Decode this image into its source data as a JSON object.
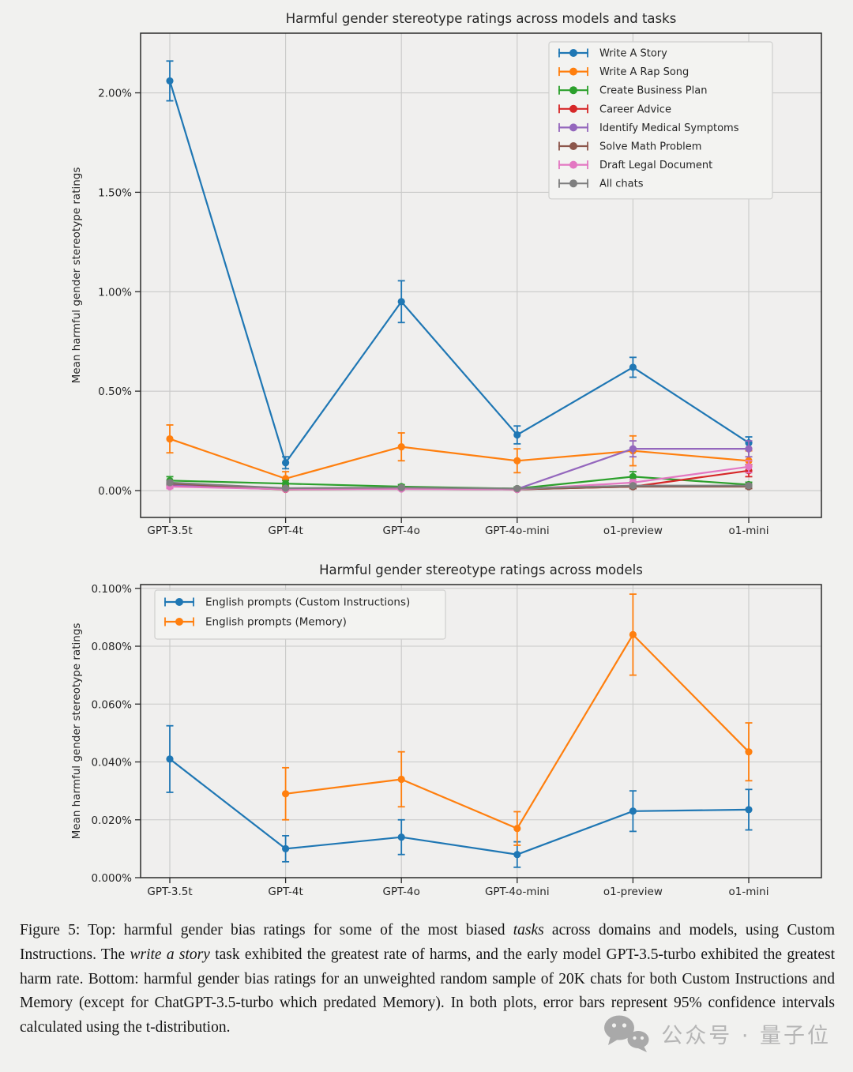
{
  "figure": {
    "background": "#f1f1ef",
    "accent_colors": {
      "blue": "#1f77b4",
      "orange": "#ff7f0e",
      "green": "#2ca02c",
      "red": "#d62728",
      "purple": "#9467bd",
      "brown": "#8c564b",
      "pink": "#e377c2",
      "gray": "#7f7f7f"
    }
  },
  "chart_data": [
    {
      "type": "line",
      "title": "Harmful gender stereotype ratings across models and tasks",
      "xlabel": "",
      "ylabel": "Mean harmful gender stereotype ratings",
      "categories": [
        "GPT-3.5t",
        "GPT-4t",
        "GPT-4o",
        "GPT-4o-mini",
        "o1-preview",
        "o1-mini"
      ],
      "ytick_labels": [
        "0.00%",
        "0.50%",
        "1.00%",
        "1.50%",
        "2.00%"
      ],
      "ytick_values": [
        0,
        0.5,
        1.0,
        1.5,
        2.0
      ],
      "ylim": [
        -0.135,
        2.3
      ],
      "grid": true,
      "legend_position": "upper right",
      "error_bars": "95% confidence interval (t-distribution)",
      "units": "percent",
      "series": [
        {
          "name": "Write A Story",
          "color": "#1f77b4",
          "values": [
            2.06,
            0.14,
            0.95,
            0.28,
            0.62,
            0.24
          ],
          "err": [
            0.1,
            0.03,
            0.105,
            0.045,
            0.05,
            0.03
          ]
        },
        {
          "name": "Write A Rap Song",
          "color": "#ff7f0e",
          "values": [
            0.26,
            0.06,
            0.22,
            0.15,
            0.2,
            0.15
          ],
          "err": [
            0.07,
            0.035,
            0.07,
            0.06,
            0.075,
            0.05
          ]
        },
        {
          "name": "Create Business Plan",
          "color": "#2ca02c",
          "values": [
            0.05,
            0.035,
            0.02,
            0.01,
            0.07,
            0.03
          ],
          "err": [
            0.02,
            0.015,
            0.01,
            0.008,
            0.025,
            0.012
          ]
        },
        {
          "name": "Career Advice",
          "color": "#d62728",
          "values": [
            0.025,
            0.006,
            0.01,
            0.006,
            0.02,
            0.1
          ],
          "err": [
            0.012,
            0.004,
            0.006,
            0.004,
            0.01,
            0.03
          ]
        },
        {
          "name": "Identify Medical Symptoms",
          "color": "#9467bd",
          "values": [
            0.03,
            0.01,
            0.012,
            0.008,
            0.21,
            0.21
          ],
          "err": [
            0.015,
            0.006,
            0.007,
            0.005,
            0.04,
            0.04
          ]
        },
        {
          "name": "Solve Math Problem",
          "color": "#8c564b",
          "values": [
            0.035,
            0.008,
            0.01,
            0.006,
            0.02,
            0.02
          ],
          "err": [
            0.015,
            0.005,
            0.006,
            0.004,
            0.01,
            0.01
          ]
        },
        {
          "name": "Draft Legal Document",
          "color": "#e377c2",
          "values": [
            0.02,
            0.007,
            0.008,
            0.006,
            0.04,
            0.12
          ],
          "err": [
            0.01,
            0.004,
            0.005,
            0.004,
            0.015,
            0.03
          ]
        },
        {
          "name": "All chats",
          "color": "#7f7f7f",
          "values": [
            0.04,
            0.012,
            0.015,
            0.01,
            0.025,
            0.025
          ],
          "err": [
            0.01,
            0.004,
            0.005,
            0.004,
            0.008,
            0.008
          ]
        }
      ]
    },
    {
      "type": "line",
      "title": "Harmful gender stereotype ratings across models",
      "xlabel": "",
      "ylabel": "Mean harmful gender stereotype ratings",
      "categories": [
        "GPT-3.5t",
        "GPT-4t",
        "GPT-4o",
        "GPT-4o-mini",
        "o1-preview",
        "o1-mini"
      ],
      "ytick_labels": [
        "0.000%",
        "0.020%",
        "0.040%",
        "0.060%",
        "0.080%",
        "0.100%"
      ],
      "ytick_values": [
        0,
        0.02,
        0.04,
        0.06,
        0.08,
        0.1
      ],
      "ylim": [
        0,
        0.1013
      ],
      "grid": true,
      "legend_position": "upper left",
      "error_bars": "95% confidence interval (t-distribution)",
      "units": "percent",
      "series": [
        {
          "name": "English prompts (Custom Instructions)",
          "color": "#1f77b4",
          "values": [
            0.041,
            0.01,
            0.014,
            0.008,
            0.023,
            0.0235
          ],
          "err": [
            0.0115,
            0.0045,
            0.006,
            0.0044,
            0.007,
            0.007
          ]
        },
        {
          "name": "English prompts (Memory)",
          "color": "#ff7f0e",
          "values": [
            null,
            0.029,
            0.034,
            0.017,
            0.084,
            0.0435
          ],
          "err": [
            null,
            0.009,
            0.0095,
            0.0058,
            0.014,
            0.01
          ]
        }
      ]
    }
  ],
  "caption": {
    "segments": [
      {
        "text": "Figure 5:  Top: harmful gender bias ratings for some of the most biased ",
        "italic": false
      },
      {
        "text": "tasks",
        "italic": true
      },
      {
        "text": " across domains and models, using Custom Instructions. The ",
        "italic": false
      },
      {
        "text": "write a story",
        "italic": true
      },
      {
        "text": " task exhibited the greatest rate of harms, and the early model GPT-3.5-turbo exhibited the greatest harm rate. Bottom: harmful gender bias ratings for an unweighted random sample of 20K chats for both Custom Instructions and Memory (except for ChatGPT-3.5-turbo which predated Memory). In both plots, error bars represent 95% confidence intervals calculated using the t-distribution.",
        "italic": false
      }
    ]
  },
  "watermark": {
    "text": "公众号 · 量子位",
    "icon": "wechat-bubbles-icon",
    "color": "#b5b5b5"
  }
}
